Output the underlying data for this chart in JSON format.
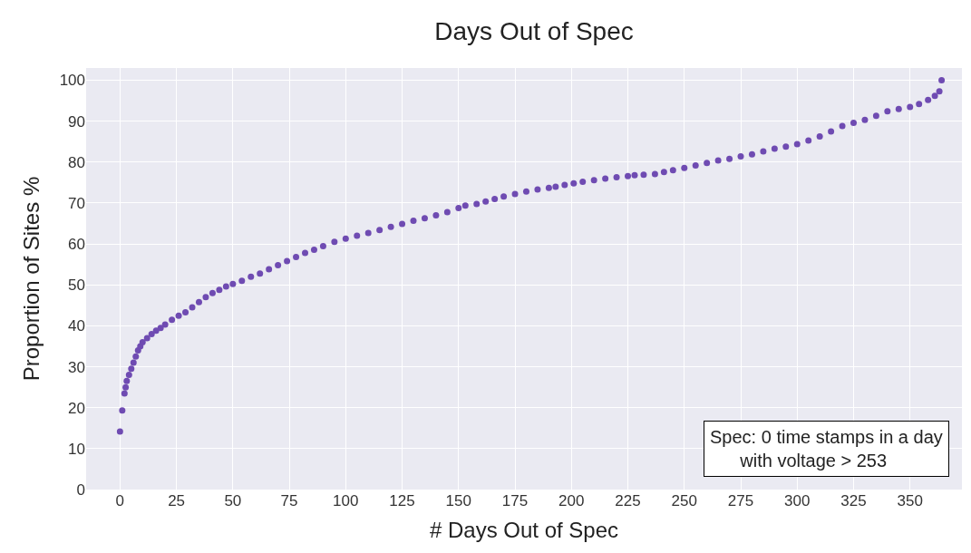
{
  "chart_data": {
    "type": "scatter",
    "title": "Days Out of Spec",
    "xlabel": "# Days Out of Spec",
    "ylabel": "Proportion of Sites %",
    "x": [
      0,
      1,
      2,
      2.5,
      3,
      4,
      5,
      6,
      7,
      8,
      9,
      10,
      12,
      14,
      16,
      18,
      20,
      23,
      26,
      29,
      32,
      35,
      38,
      41,
      44,
      47,
      50,
      54,
      58,
      62,
      66,
      70,
      74,
      78,
      82,
      86,
      90,
      95,
      100,
      105,
      110,
      115,
      120,
      125,
      130,
      135,
      140,
      145,
      150,
      153,
      158,
      162,
      166,
      170,
      175,
      180,
      185,
      190,
      193,
      197,
      201,
      205,
      210,
      215,
      220,
      225,
      228,
      232,
      237,
      241,
      245,
      250,
      255,
      260,
      265,
      270,
      275,
      280,
      285,
      290,
      295,
      300,
      305,
      310,
      315,
      320,
      325,
      330,
      335,
      340,
      345,
      350,
      354,
      358,
      361,
      363,
      364
    ],
    "series": [
      {
        "color": "#6f4bb2",
        "values": [
          14.2,
          19.3,
          23.5,
          25,
          26.5,
          28,
          29.5,
          31,
          32.5,
          34,
          35,
          36,
          37,
          38,
          38.8,
          39.5,
          40.3,
          41.5,
          42.5,
          43.3,
          44.5,
          45.8,
          47,
          48,
          48.8,
          49.6,
          50.2,
          51,
          52,
          52.8,
          53.8,
          54.8,
          55.8,
          56.8,
          57.8,
          58.6,
          59.5,
          60.5,
          61.3,
          62,
          62.7,
          63.4,
          64.2,
          64.9,
          65.7,
          66.3,
          67,
          67.8,
          68.8,
          69.4,
          69.8,
          70.4,
          71,
          71.6,
          72.2,
          72.8,
          73.3,
          73.7,
          74,
          74.4,
          74.8,
          75.2,
          75.6,
          76,
          76.3,
          76.6,
          76.8,
          76.9,
          77.1,
          77.6,
          78,
          78.6,
          79.2,
          79.8,
          80.4,
          80.8,
          81.4,
          81.9,
          82.6,
          83.3,
          83.8,
          84.4,
          85.3,
          86.3,
          87.5,
          88.8,
          89.6,
          90.3,
          91.3,
          92.4,
          93,
          93.5,
          94.2,
          95.2,
          96.2,
          97.3,
          100
        ]
      }
    ],
    "xlim": [
      -15,
      373
    ],
    "ylim": [
      0,
      103
    ],
    "xticks": [
      0,
      25,
      50,
      75,
      100,
      125,
      150,
      175,
      200,
      225,
      250,
      275,
      300,
      325,
      350
    ],
    "yticks": [
      0,
      10,
      20,
      30,
      40,
      50,
      60,
      70,
      80,
      90,
      100
    ],
    "grid": true,
    "marker": "circle",
    "annotations": [
      "Spec: 0 time stamps in a day\n      with voltage > 253"
    ]
  }
}
